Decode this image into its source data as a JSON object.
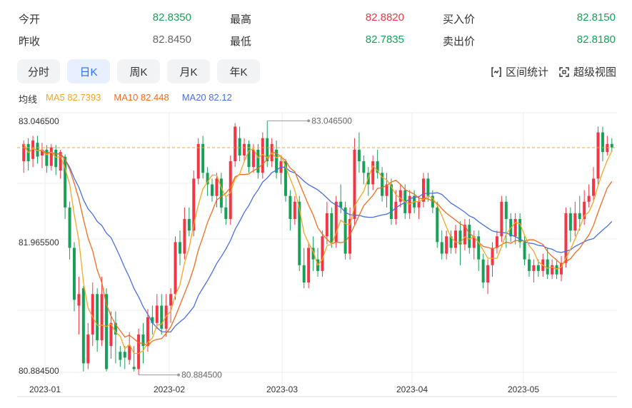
{
  "quote": {
    "open_label": "今开",
    "open_value": "82.8350",
    "high_label": "最高",
    "high_value": "82.8820",
    "bid_label": "买入价",
    "bid_value": "82.8150",
    "prev_close_label": "昨收",
    "prev_close_value": "82.8450",
    "low_label": "最低",
    "low_value": "82.7835",
    "ask_label": "卖出价",
    "ask_value": "82.8180"
  },
  "tabs": [
    {
      "label": "分时",
      "active": false
    },
    {
      "label": "日K",
      "active": true
    },
    {
      "label": "周K",
      "active": false
    },
    {
      "label": "月K",
      "active": false
    },
    {
      "label": "年K",
      "active": false
    }
  ],
  "tools": {
    "interval_stats": "区间统计",
    "super_view": "超级视图"
  },
  "ma_legend": {
    "title": "均线",
    "ma5": "MA5 82.7393",
    "ma10": "MA10 82.448",
    "ma20": "MA20 82.12"
  },
  "colors": {
    "up": "#f23645",
    "down": "#18a058",
    "ma5": "#f5a623",
    "ma10": "#f06d1e",
    "ma20": "#4a6ee0",
    "price_line": "#f5a623",
    "grid": "#eeeeee",
    "active_tab": "#2f6bff",
    "high_value": "#f23645",
    "neutral_value": "#666666"
  },
  "chart_data": {
    "type": "candlestick",
    "ylim": [
      80.8845,
      83.0465
    ],
    "y_ticks": [
      "83.046500",
      "81.965500",
      "80.884500"
    ],
    "x_ticks": [
      "2023-01",
      "2023-02",
      "2023-03",
      "2023-04",
      "2023-05"
    ],
    "high_annotation": "83.046500",
    "low_annotation": "80.884500",
    "current_price": 82.818,
    "candles": [
      [
        82.7,
        82.85,
        82.6,
        82.88
      ],
      [
        82.85,
        82.7,
        82.62,
        82.9
      ],
      [
        82.72,
        82.88,
        82.65,
        82.92
      ],
      [
        82.86,
        82.74,
        82.68,
        82.92
      ],
      [
        82.75,
        82.8,
        82.64,
        82.86
      ],
      [
        82.8,
        82.66,
        82.6,
        82.84
      ],
      [
        82.66,
        82.82,
        82.62,
        82.85
      ],
      [
        82.8,
        82.65,
        82.58,
        82.84
      ],
      [
        82.62,
        82.78,
        82.55,
        82.8
      ],
      [
        82.74,
        82.3,
        82.2,
        82.76
      ],
      [
        82.3,
        81.95,
        81.85,
        82.35
      ],
      [
        81.95,
        81.5,
        81.4,
        82.0
      ],
      [
        81.45,
        81.55,
        81.2,
        81.7
      ],
      [
        81.6,
        80.95,
        80.88,
        81.62
      ],
      [
        80.95,
        81.2,
        80.9,
        81.3
      ],
      [
        81.2,
        81.55,
        81.1,
        81.65
      ],
      [
        81.55,
        81.15,
        81.05,
        81.6
      ],
      [
        81.15,
        81.55,
        81.1,
        81.7
      ],
      [
        81.55,
        80.9,
        80.88,
        81.6
      ],
      [
        81.1,
        81.3,
        80.99,
        81.4
      ],
      [
        81.3,
        81.2,
        80.95,
        81.4
      ],
      [
        81.05,
        80.98,
        80.92,
        81.1
      ],
      [
        81.05,
        81.0,
        80.9,
        81.1
      ],
      [
        80.98,
        81.1,
        80.94,
        81.22
      ],
      [
        80.92,
        80.9,
        80.88,
        81.1
      ],
      [
        80.9,
        81.2,
        80.85,
        81.25
      ],
      [
        81.2,
        81.1,
        80.95,
        81.3
      ],
      [
        81.1,
        81.35,
        81.05,
        81.42
      ],
      [
        81.35,
        81.3,
        81.2,
        81.45
      ],
      [
        81.3,
        81.45,
        81.25,
        81.55
      ],
      [
        81.45,
        81.25,
        81.2,
        81.55
      ],
      [
        81.25,
        81.45,
        81.18,
        81.55
      ],
      [
        81.45,
        81.55,
        81.3,
        81.6
      ],
      [
        81.55,
        82.0,
        81.5,
        82.05
      ],
      [
        82.0,
        81.9,
        81.8,
        82.1
      ],
      [
        81.9,
        82.2,
        81.85,
        82.3
      ],
      [
        82.2,
        82.1,
        82.05,
        82.3
      ],
      [
        82.1,
        82.55,
        82.05,
        82.62
      ],
      [
        82.55,
        82.85,
        82.5,
        82.9
      ],
      [
        82.85,
        82.6,
        82.55,
        82.92
      ],
      [
        82.6,
        82.5,
        82.4,
        82.65
      ],
      [
        82.5,
        82.4,
        82.35,
        82.55
      ],
      [
        82.4,
        82.55,
        82.3,
        82.6
      ],
      [
        82.55,
        82.3,
        82.25,
        82.6
      ],
      [
        82.3,
        82.2,
        82.15,
        82.4
      ],
      [
        82.2,
        82.7,
        82.15,
        82.75
      ],
      [
        82.7,
        83.0,
        82.65,
        83.03
      ],
      [
        82.9,
        82.75,
        82.7,
        83.0
      ],
      [
        82.75,
        82.85,
        82.7,
        82.9
      ],
      [
        82.85,
        82.65,
        82.6,
        82.88
      ],
      [
        82.65,
        82.8,
        82.6,
        82.85
      ],
      [
        82.8,
        82.6,
        82.55,
        82.85
      ],
      [
        82.6,
        82.9,
        82.55,
        82.95
      ],
      [
        82.9,
        82.7,
        82.65,
        83.05
      ],
      [
        82.7,
        82.85,
        82.65,
        82.9
      ],
      [
        82.8,
        82.6,
        82.55,
        82.88
      ],
      [
        82.6,
        82.7,
        82.5,
        82.75
      ],
      [
        82.7,
        82.4,
        82.35,
        82.72
      ],
      [
        82.4,
        82.2,
        82.1,
        82.45
      ],
      [
        82.2,
        82.35,
        82.15,
        82.4
      ],
      [
        82.35,
        81.8,
        81.75,
        82.4
      ],
      [
        81.8,
        81.65,
        81.6,
        81.95
      ],
      [
        81.65,
        81.95,
        81.6,
        82.0
      ],
      [
        81.95,
        81.85,
        81.75,
        82.05
      ],
      [
        81.85,
        81.75,
        81.7,
        81.95
      ],
      [
        81.75,
        82.05,
        81.7,
        82.1
      ],
      [
        82.05,
        82.25,
        81.98,
        82.35
      ],
      [
        82.25,
        82.0,
        81.95,
        82.3
      ],
      [
        82.0,
        82.35,
        81.95,
        82.4
      ],
      [
        82.35,
        82.3,
        82.25,
        82.5
      ],
      [
        82.3,
        81.9,
        81.85,
        82.35
      ],
      [
        81.9,
        82.2,
        81.85,
        82.3
      ],
      [
        82.2,
        82.8,
        82.15,
        82.9
      ],
      [
        82.8,
        82.7,
        82.6,
        82.95
      ],
      [
        82.7,
        82.6,
        82.5,
        82.75
      ],
      [
        82.6,
        82.5,
        82.4,
        82.65
      ],
      [
        82.5,
        82.7,
        82.45,
        82.75
      ],
      [
        82.7,
        82.6,
        82.55,
        82.8
      ],
      [
        82.6,
        82.4,
        82.35,
        82.65
      ],
      [
        82.4,
        82.5,
        82.3,
        82.6
      ],
      [
        82.5,
        82.2,
        82.15,
        82.55
      ],
      [
        82.2,
        82.35,
        82.15,
        82.45
      ],
      [
        82.35,
        82.45,
        82.3,
        82.5
      ],
      [
        82.45,
        82.25,
        82.2,
        82.5
      ],
      [
        82.25,
        82.4,
        82.2,
        82.45
      ],
      [
        82.4,
        82.3,
        82.25,
        82.45
      ],
      [
        82.3,
        82.35,
        82.2,
        82.4
      ],
      [
        82.35,
        82.55,
        82.3,
        82.6
      ],
      [
        82.55,
        82.4,
        82.35,
        82.6
      ],
      [
        82.4,
        82.3,
        82.25,
        82.45
      ],
      [
        82.3,
        82.0,
        81.95,
        82.35
      ],
      [
        82.0,
        81.9,
        81.85,
        82.1
      ],
      [
        81.9,
        82.05,
        81.85,
        82.1
      ],
      [
        82.05,
        81.95,
        81.9,
        82.1
      ],
      [
        81.95,
        82.1,
        81.9,
        82.15
      ],
      [
        82.1,
        81.98,
        81.8,
        82.18
      ],
      [
        81.98,
        82.15,
        81.93,
        82.2
      ],
      [
        82.15,
        81.95,
        81.9,
        82.2
      ],
      [
        81.95,
        82.05,
        81.85,
        82.1
      ],
      [
        82.05,
        81.85,
        81.75,
        82.1
      ],
      [
        81.85,
        81.65,
        81.6,
        81.9
      ],
      [
        81.65,
        81.8,
        81.55,
        81.85
      ],
      [
        81.8,
        81.95,
        81.7,
        82.0
      ],
      [
        81.95,
        82.05,
        81.9,
        82.1
      ],
      [
        82.05,
        82.35,
        82.0,
        82.4
      ],
      [
        82.35,
        82.2,
        81.95,
        82.4
      ],
      [
        82.2,
        82.05,
        82.0,
        82.25
      ],
      [
        82.05,
        82.2,
        81.98,
        82.25
      ],
      [
        82.2,
        82.0,
        81.95,
        82.25
      ],
      [
        82.0,
        81.85,
        81.8,
        82.05
      ],
      [
        81.85,
        81.75,
        81.7,
        81.9
      ],
      [
        81.75,
        81.8,
        81.65,
        81.85
      ],
      [
        81.8,
        81.75,
        81.7,
        81.85
      ],
      [
        81.75,
        81.85,
        81.7,
        81.9
      ],
      [
        81.85,
        81.72,
        81.68,
        81.95
      ],
      [
        81.72,
        81.8,
        81.68,
        81.85
      ],
      [
        81.8,
        81.72,
        81.68,
        81.85
      ],
      [
        81.72,
        81.82,
        81.66,
        81.88
      ],
      [
        81.82,
        82.25,
        81.78,
        82.3
      ],
      [
        82.25,
        82.1,
        82.0,
        82.3
      ],
      [
        82.1,
        82.25,
        82.05,
        82.35
      ],
      [
        82.25,
        82.2,
        82.1,
        82.4
      ],
      [
        82.2,
        82.35,
        82.15,
        82.45
      ],
      [
        82.35,
        82.4,
        82.3,
        82.5
      ],
      [
        82.4,
        82.55,
        82.35,
        82.65
      ],
      [
        82.55,
        82.95,
        82.5,
        83.0
      ],
      [
        82.95,
        82.78,
        82.7,
        83.0
      ],
      [
        82.78,
        82.85,
        82.75,
        82.92
      ],
      [
        82.85,
        82.82,
        82.78,
        82.9
      ]
    ]
  }
}
